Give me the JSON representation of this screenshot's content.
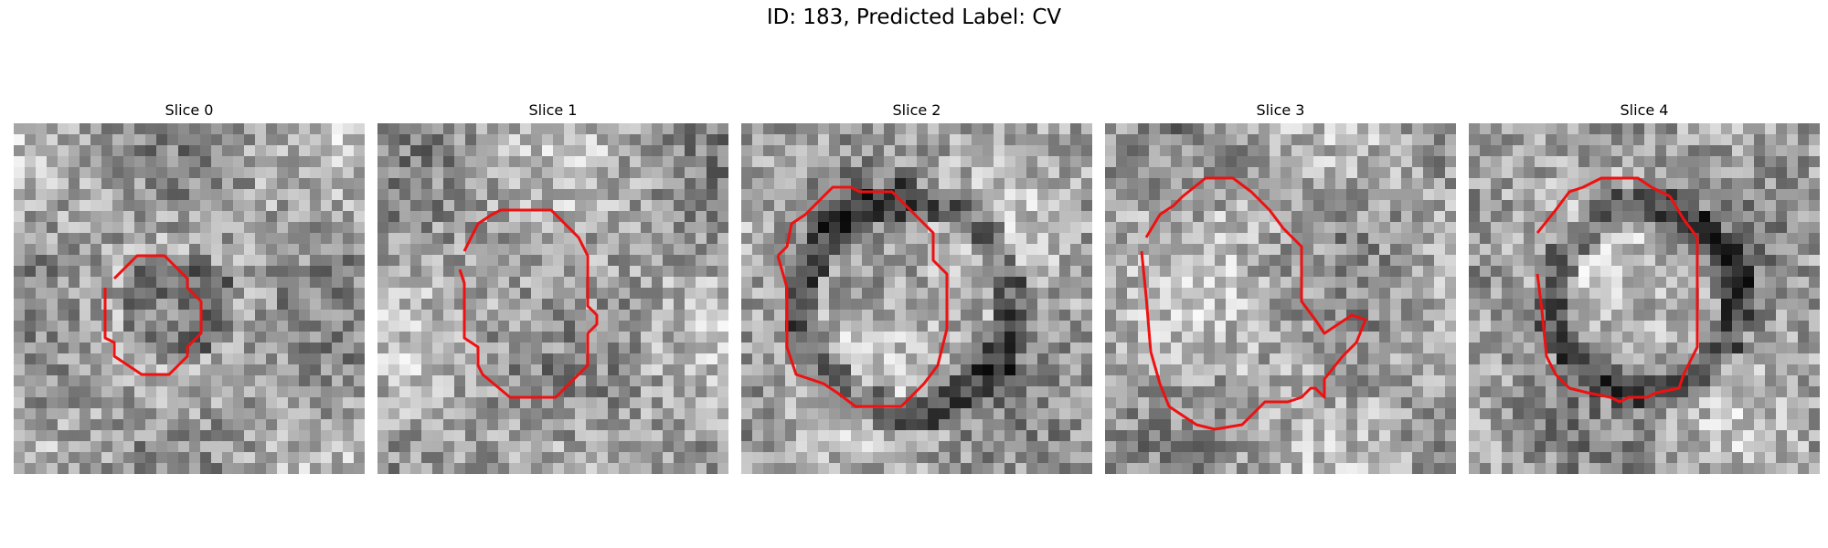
{
  "figure": {
    "title": "ID: 183, Predicted Label: CV",
    "contour_color": "#ee1111"
  },
  "panels": [
    {
      "label": "Slice 0",
      "seed": 11,
      "center": [
        0.47,
        0.52
      ],
      "radius": 0.16,
      "ring": "dark-blob"
    },
    {
      "label": "Slice 1",
      "seed": 23,
      "center": [
        0.5,
        0.5
      ],
      "radius": 0.24,
      "ring": "faint"
    },
    {
      "label": "Slice 2",
      "seed": 37,
      "center": [
        0.47,
        0.52
      ],
      "radius": 0.3,
      "ring": "dark-ring"
    },
    {
      "label": "Slice 3",
      "seed": 41,
      "center": [
        0.45,
        0.48
      ],
      "radius": 0.3,
      "ring": "faint"
    },
    {
      "label": "Slice 4",
      "seed": 59,
      "center": [
        0.5,
        0.5
      ],
      "radius": 0.26,
      "ring": "dark-ring"
    }
  ]
}
